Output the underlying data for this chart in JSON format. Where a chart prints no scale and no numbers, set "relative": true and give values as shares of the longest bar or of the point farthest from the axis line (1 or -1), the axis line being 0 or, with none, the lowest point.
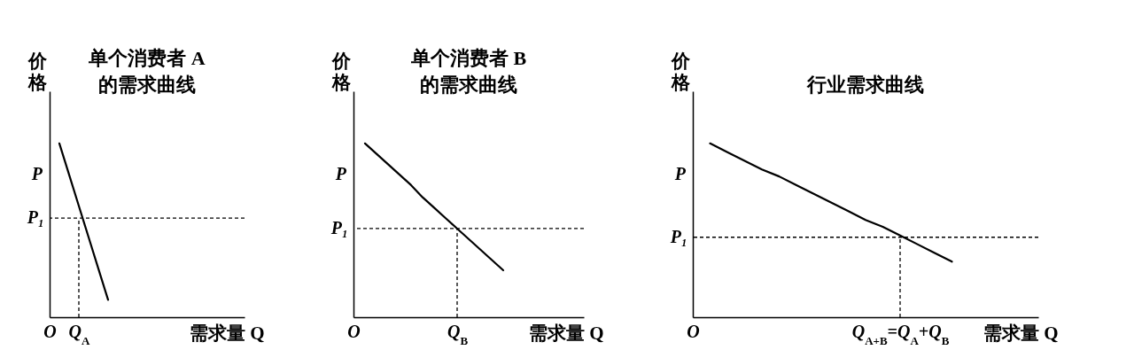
{
  "chart_data": [
    {
      "type": "line",
      "relative": true,
      "title": "单个消费者 A\n的需求曲线",
      "xlabel": "需求量 Q",
      "ylabel": "价格",
      "categories": [
        "O",
        null,
        null,
        "Q$_{A}$",
        null,
        null,
        null,
        null,
        null,
        null,
        null,
        null,
        null,
        null,
        null,
        null,
        null,
        null,
        null,
        null,
        null
      ],
      "series": [
        {
          "color": "#000000",
          "values": [
            null,
            1,
            0.82,
            0.64,
            0.46,
            0.28,
            0.1,
            null,
            null,
            null,
            null,
            null,
            null,
            null,
            null,
            null,
            null,
            null,
            null,
            null,
            null
          ]
        }
      ],
      "ref_lines": [
        {
          "axis": "y",
          "value": 0.57,
          "label": "P₁",
          "line_style": "dashed"
        },
        {
          "axis": "x",
          "value": "Q$_{A}$",
          "label": null,
          "line_style": "dashed"
        }
      ],
      "annotations": [
        "P"
      ],
      "marker": "none",
      "legend": false
    },
    {
      "type": "line",
      "relative": true,
      "title": "单个消费者 B\n的需求曲线",
      "xlabel": "需求量 Q",
      "ylabel": "价格",
      "categories": [
        "O",
        null,
        null,
        null,
        null,
        null,
        null,
        null,
        null,
        "Q$_{B}$",
        null,
        null,
        null,
        null,
        null,
        null,
        null,
        null,
        null,
        null,
        null
      ],
      "series": [
        {
          "color": "#000000",
          "values": [
            null,
            1,
            0.94,
            0.88,
            0.82,
            0.76,
            0.69,
            0.63,
            0.57,
            0.51,
            0.45,
            0.39,
            0.33,
            0.27,
            null,
            null,
            null,
            null,
            null,
            null,
            null
          ]
        }
      ],
      "ref_lines": [
        {
          "axis": "y",
          "value": 0.51,
          "label": "P₁",
          "line_style": "dashed"
        },
        {
          "axis": "x",
          "value": "Q$_{B}$",
          "label": null,
          "line_style": "dashed"
        }
      ],
      "annotations": [
        "P"
      ],
      "marker": "none",
      "legend": false
    },
    {
      "type": "line",
      "relative": true,
      "title": "行业需求曲线",
      "xlabel": "需求量 Q",
      "ylabel": "价格",
      "categories": [
        "O",
        null,
        null,
        null,
        null,
        null,
        null,
        null,
        null,
        null,
        null,
        null,
        "Q$_{A+B}$=Q$_{A}$+Q$_{B}$",
        null,
        null,
        null,
        null,
        null,
        null,
        null,
        null
      ],
      "series": [
        {
          "color": "#000000",
          "values": [
            null,
            1,
            0.95,
            0.9,
            0.85,
            0.81,
            0.76,
            0.71,
            0.66,
            0.61,
            0.56,
            0.52,
            0.47,
            0.42,
            0.37,
            0.32,
            null,
            null,
            null,
            null,
            null
          ]
        }
      ],
      "ref_lines": [
        {
          "axis": "y",
          "value": 0.46,
          "label": "P₁",
          "line_style": "dashed"
        },
        {
          "axis": "x",
          "value": "Q$_{A+B}$=Q$_{A}$+Q$_{B}$",
          "label": null,
          "line_style": "dashed"
        }
      ],
      "annotations": [
        "P"
      ],
      "marker": "none",
      "legend": false
    }
  ]
}
